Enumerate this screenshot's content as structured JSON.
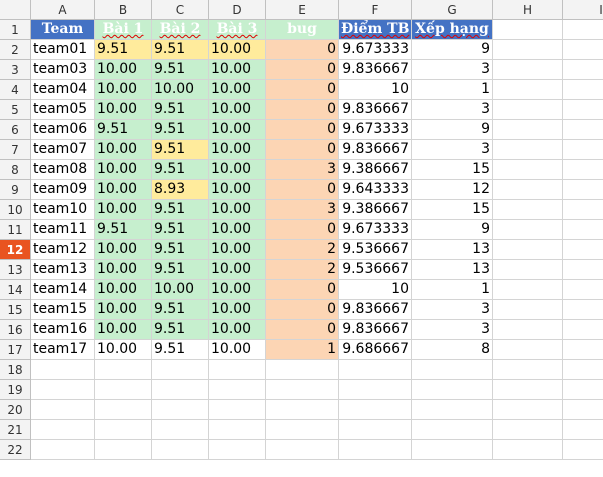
{
  "columns": [
    "A",
    "B",
    "C",
    "D",
    "E",
    "F",
    "G",
    "H",
    "I"
  ],
  "row_numbers": [
    "1",
    "2",
    "3",
    "4",
    "5",
    "6",
    "7",
    "8",
    "9",
    "10",
    "11",
    "12",
    "13",
    "14",
    "15",
    "16",
    "17",
    "18",
    "19",
    "20",
    "21",
    "22"
  ],
  "active_row": "12",
  "colors": {
    "header_blue": "#4472c4",
    "score_green": "#c6efce",
    "yellow": "#ffeb9c",
    "bug_orange": "#fcd5b4",
    "active_row_header": "#e95420"
  },
  "table": {
    "headers": [
      "Team",
      "Bài 1",
      "Bài 2",
      "Bài 3",
      "bug",
      "Điểm TB",
      "Xếp hạng"
    ],
    "rows": [
      [
        "team01",
        "9.51",
        "9.51",
        "10.00",
        "0",
        "9.673333",
        "9"
      ],
      [
        "team03",
        "10.00",
        "9.51",
        "10.00",
        "0",
        "9.836667",
        "3"
      ],
      [
        "team04",
        "10.00",
        "10.00",
        "10.00",
        "0",
        "10",
        "1"
      ],
      [
        "team05",
        "10.00",
        "9.51",
        "10.00",
        "0",
        "9.836667",
        "3"
      ],
      [
        "team06",
        "9.51",
        "9.51",
        "10.00",
        "0",
        "9.673333",
        "9"
      ],
      [
        "team07",
        "10.00",
        "9.51",
        "10.00",
        "0",
        "9.836667",
        "3"
      ],
      [
        "team08",
        "10.00",
        "9.51",
        "10.00",
        "3",
        "9.386667",
        "15"
      ],
      [
        "team09",
        "10.00",
        "8.93",
        "10.00",
        "0",
        "9.643333",
        "12"
      ],
      [
        "team10",
        "10.00",
        "9.51",
        "10.00",
        "3",
        "9.386667",
        "15"
      ],
      [
        "team11",
        "9.51",
        "9.51",
        "10.00",
        "0",
        "9.673333",
        "9"
      ],
      [
        "team12",
        "10.00",
        "9.51",
        "10.00",
        "2",
        "9.536667",
        "13"
      ],
      [
        "team13",
        "10.00",
        "9.51",
        "10.00",
        "2",
        "9.536667",
        "13"
      ],
      [
        "team14",
        "10.00",
        "10.00",
        "10.00",
        "0",
        "10",
        "1"
      ],
      [
        "team15",
        "10.00",
        "9.51",
        "10.00",
        "0",
        "9.836667",
        "3"
      ],
      [
        "team16",
        "10.00",
        "9.51",
        "10.00",
        "0",
        "9.836667",
        "3"
      ],
      [
        "team17",
        "10.00",
        "9.51",
        "10.00",
        "1",
        "9.686667",
        "8"
      ]
    ]
  }
}
